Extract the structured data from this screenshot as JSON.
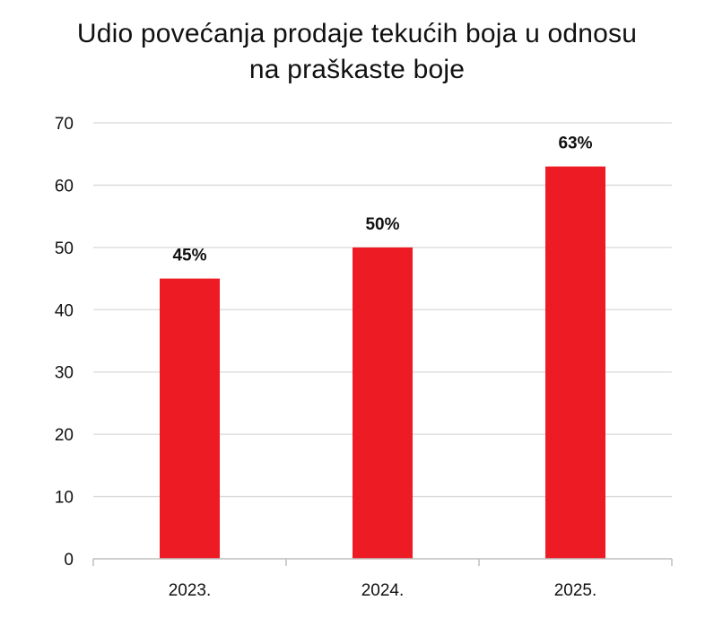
{
  "chart_data": {
    "type": "bar",
    "title_lines": [
      "Udio povećanja prodaje tekućih boja u odnosu",
      "na praškaste boje"
    ],
    "categories": [
      "2023.",
      "2024.",
      "2025."
    ],
    "values": [
      45,
      50,
      63
    ],
    "data_labels": [
      "45%",
      "50%",
      "63%"
    ],
    "ylim": [
      0,
      70
    ],
    "yticks": [
      0,
      10,
      20,
      30,
      40,
      50,
      60,
      70
    ],
    "grid": true,
    "bar_color": "#ed1c24"
  }
}
